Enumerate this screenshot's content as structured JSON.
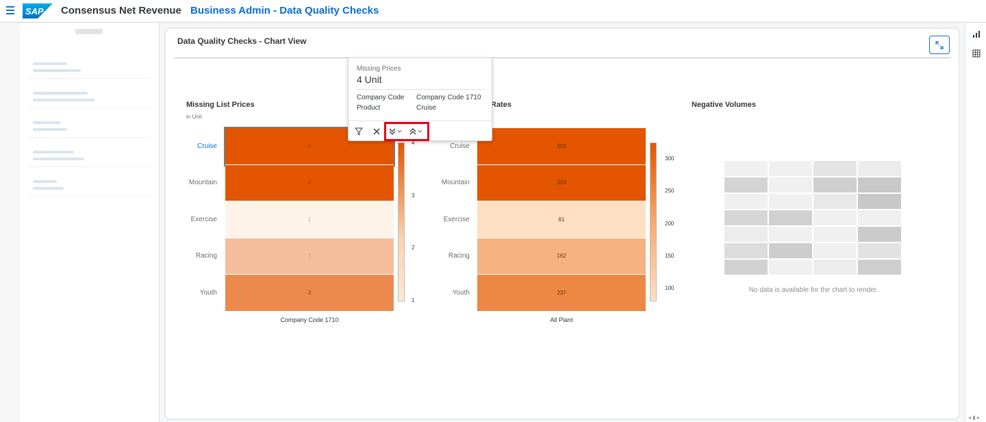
{
  "shell": {
    "logo": "SAP",
    "app_title": "Consensus Net Revenue",
    "page_heading": "Business Admin - Data Quality Checks"
  },
  "card": {
    "title": "Data Quality Checks - Chart View"
  },
  "chart_data": [
    {
      "type": "heatmap",
      "title": "Missing List Prices",
      "subtitle": "in Unit",
      "categories": [
        "Cruise",
        "Mountain",
        "Exercise",
        "Racing",
        "Youth"
      ],
      "x": [
        "Company Code 1710"
      ],
      "values": [
        4,
        4,
        1,
        2,
        3
      ],
      "value_labels": [
        "4",
        "4",
        "1",
        "2",
        "3"
      ],
      "legend_ticks": [
        "4",
        "3",
        "2",
        "1"
      ],
      "legend_range": [
        1,
        4
      ],
      "selected_category": "Cruise",
      "colors": {
        "max": "#e35500",
        "min": "#fef3e9"
      }
    },
    {
      "type": "heatmap",
      "title": "Rates",
      "categories": [
        "Cruise",
        "Mountain",
        "Exercise",
        "Racing",
        "Youth"
      ],
      "x": [
        "All Plant"
      ],
      "values": [
        324,
        324,
        81,
        162,
        237
      ],
      "value_labels": [
        "324",
        "324",
        "81",
        "162",
        "237"
      ],
      "legend_ticks": [
        "300",
        "250",
        "200",
        "150",
        "100"
      ],
      "legend_range": [
        81,
        324
      ],
      "colors": {
        "max": "#e35500",
        "min": "#fde0c3"
      }
    },
    {
      "type": "heatmap",
      "title": "Negative Volumes",
      "no_data_message": "No data is available for the chart to render."
    }
  ],
  "popover": {
    "measure": "Missing Prices",
    "value": "4 Unit",
    "dimensions": [
      {
        "label": "Company Code",
        "value": "Company Code 1710"
      },
      {
        "label": "Product",
        "value": "Cruise"
      }
    ],
    "toolbar": [
      "filter-icon",
      "close-icon",
      "drill-down-icon",
      "drill-up-icon"
    ]
  },
  "right_bar": {
    "icons": [
      "chart-icon",
      "table-icon"
    ]
  }
}
